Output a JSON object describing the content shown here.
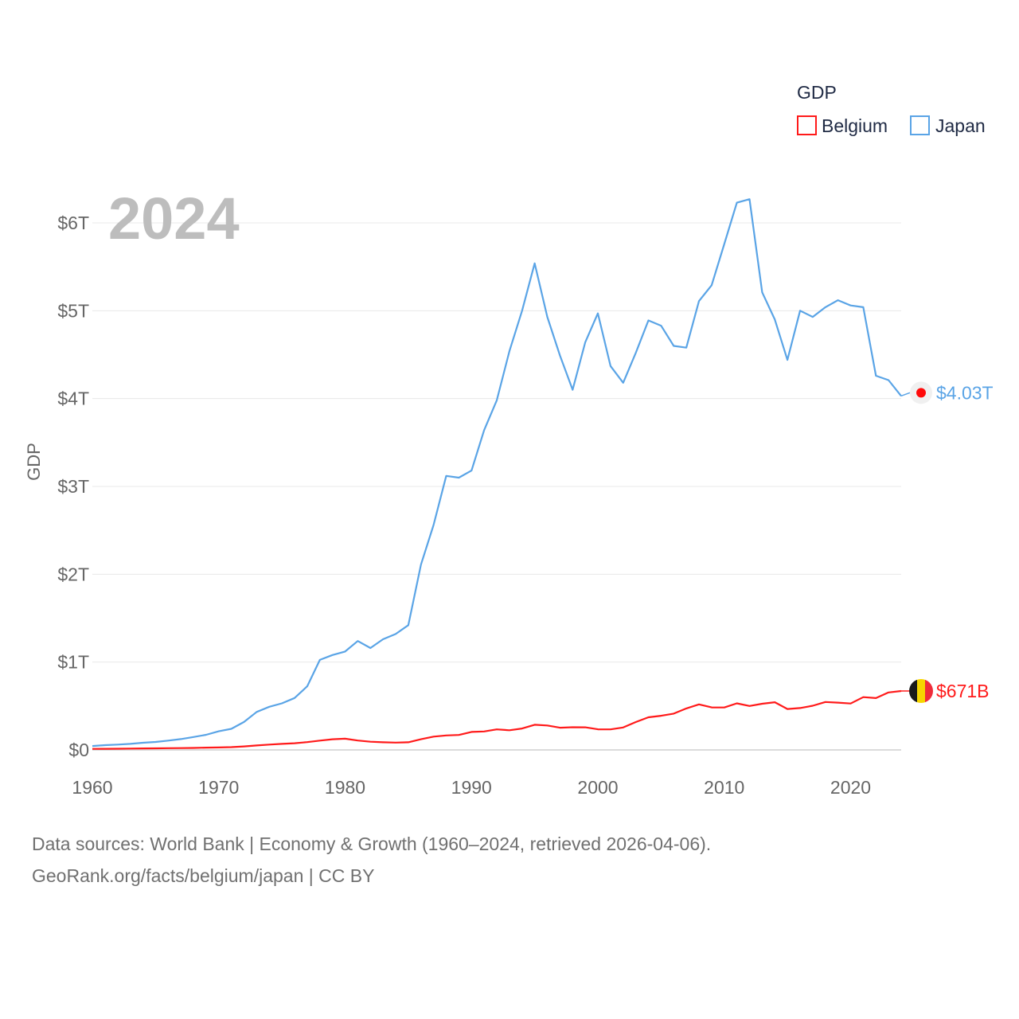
{
  "chart_data": {
    "type": "line",
    "title": "2024",
    "ylabel": "GDP",
    "xlabel": "",
    "xlim": [
      1960,
      2024
    ],
    "ylim": [
      0,
      6.3
    ],
    "y_ticks": [
      {
        "value": 0,
        "label": "$0"
      },
      {
        "value": 1,
        "label": "$1T"
      },
      {
        "value": 2,
        "label": "$2T"
      },
      {
        "value": 3,
        "label": "$3T"
      },
      {
        "value": 4,
        "label": "$4T"
      },
      {
        "value": 5,
        "label": "$5T"
      },
      {
        "value": 6,
        "label": "$6T"
      }
    ],
    "x_ticks": [
      {
        "value": 1960,
        "label": "1960"
      },
      {
        "value": 1970,
        "label": "1970"
      },
      {
        "value": 1980,
        "label": "1980"
      },
      {
        "value": 1990,
        "label": "1990"
      },
      {
        "value": 2000,
        "label": "2000"
      },
      {
        "value": 2010,
        "label": "2010"
      },
      {
        "value": 2020,
        "label": "2020"
      }
    ],
    "legend": {
      "title": "GDP",
      "position": "top-right"
    },
    "units": "trillion USD",
    "x": [
      1960,
      1961,
      1962,
      1963,
      1964,
      1965,
      1966,
      1967,
      1968,
      1969,
      1970,
      1971,
      1972,
      1973,
      1974,
      1975,
      1976,
      1977,
      1978,
      1979,
      1980,
      1981,
      1982,
      1983,
      1984,
      1985,
      1986,
      1987,
      1988,
      1989,
      1990,
      1991,
      1992,
      1993,
      1994,
      1995,
      1996,
      1997,
      1998,
      1999,
      2000,
      2001,
      2002,
      2003,
      2004,
      2005,
      2006,
      2007,
      2008,
      2009,
      2010,
      2011,
      2012,
      2013,
      2014,
      2015,
      2016,
      2017,
      2018,
      2019,
      2020,
      2021,
      2022,
      2023,
      2024
    ],
    "series": [
      {
        "name": "Belgium",
        "color": "#ff1a1a",
        "end_label": "$671B",
        "marker": "belgium-flag",
        "values": [
          0.012,
          0.013,
          0.014,
          0.015,
          0.017,
          0.018,
          0.02,
          0.021,
          0.023,
          0.026,
          0.028,
          0.032,
          0.04,
          0.051,
          0.061,
          0.069,
          0.076,
          0.089,
          0.106,
          0.121,
          0.128,
          0.107,
          0.093,
          0.087,
          0.083,
          0.087,
          0.121,
          0.151,
          0.165,
          0.17,
          0.205,
          0.21,
          0.234,
          0.224,
          0.244,
          0.286,
          0.278,
          0.253,
          0.258,
          0.257,
          0.235,
          0.234,
          0.256,
          0.317,
          0.372,
          0.389,
          0.413,
          0.472,
          0.518,
          0.484,
          0.483,
          0.53,
          0.5,
          0.526,
          0.543,
          0.466,
          0.477,
          0.503,
          0.546,
          0.538,
          0.528,
          0.601,
          0.59,
          0.654,
          0.671
        ]
      },
      {
        "name": "Japan",
        "color": "#5aa4e6",
        "end_label": "$4.03T",
        "marker": "japan-flag",
        "values": [
          0.044,
          0.054,
          0.061,
          0.069,
          0.082,
          0.091,
          0.106,
          0.123,
          0.147,
          0.172,
          0.212,
          0.24,
          0.318,
          0.432,
          0.491,
          0.53,
          0.591,
          0.724,
          1.025,
          1.08,
          1.12,
          1.24,
          1.16,
          1.26,
          1.32,
          1.42,
          2.11,
          2.56,
          3.12,
          3.1,
          3.18,
          3.64,
          3.98,
          4.54,
          5.0,
          5.54,
          4.93,
          4.49,
          4.1,
          4.64,
          4.97,
          4.37,
          4.18,
          4.52,
          4.89,
          4.83,
          4.6,
          4.58,
          5.11,
          5.29,
          5.76,
          6.23,
          6.27,
          5.21,
          4.9,
          4.44,
          5.0,
          4.93,
          5.04,
          5.12,
          5.06,
          5.04,
          4.26,
          4.21,
          4.03
        ]
      }
    ]
  },
  "footer": {
    "line1": "Data sources: World Bank | Economy & Growth (1960–2024, retrieved 2026-04-06).",
    "line2": "GeoRank.org/facts/belgium/japan | CC BY"
  }
}
